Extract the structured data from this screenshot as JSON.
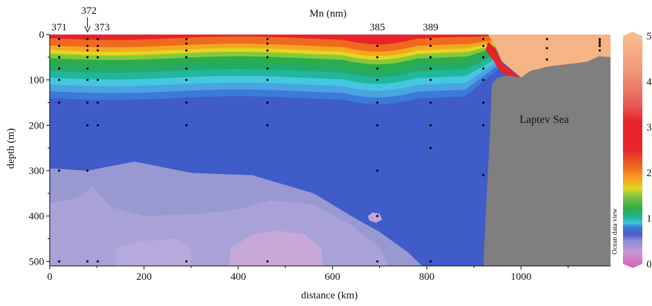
{
  "chart_data": {
    "type": "heatmap",
    "title": "Mn (nm)",
    "xlabel": "distance (km)",
    "ylabel": "depth (m)",
    "xlim": [
      0,
      1190
    ],
    "ylim": [
      510,
      0
    ],
    "xticks": [
      0,
      200,
      400,
      600,
      800,
      1000
    ],
    "yticks": [
      0,
      100,
      200,
      300,
      400,
      500
    ],
    "colorbar": {
      "ticks": [
        0,
        1,
        2,
        3,
        4,
        5
      ],
      "range": [
        0,
        5
      ],
      "label": "Ocean data view"
    },
    "stations": [
      {
        "label": "371",
        "x": 20
      },
      {
        "label": "372",
        "x": 80,
        "arrow": true
      },
      {
        "label": "373",
        "x": 102
      },
      {
        "label": "385",
        "x": 695
      },
      {
        "label": "389",
        "x": 808
      }
    ],
    "sample_profiles": [
      {
        "x": 20,
        "depths": [
          10,
          25,
          50,
          75,
          100,
          150,
          300,
          500
        ]
      },
      {
        "x": 80,
        "depths": [
          10,
          25,
          35,
          50,
          75,
          100,
          150,
          200,
          300,
          500
        ]
      },
      {
        "x": 102,
        "depths": [
          10,
          25,
          35,
          50,
          100,
          150,
          200,
          500
        ]
      },
      {
        "x": 290,
        "depths": [
          10,
          20,
          35,
          50,
          75,
          100,
          150,
          200,
          500
        ]
      },
      {
        "x": 462,
        "depths": [
          10,
          20,
          35,
          50,
          75,
          100,
          150,
          200,
          500
        ]
      },
      {
        "x": 695,
        "depths": [
          25,
          50,
          75,
          100,
          150,
          200,
          300,
          400,
          500
        ]
      },
      {
        "x": 808,
        "depths": [
          10,
          25,
          50,
          75,
          100,
          150,
          200,
          250,
          500
        ]
      },
      {
        "x": 920,
        "depths": [
          10,
          25,
          50,
          75,
          100,
          150,
          200,
          310,
          510
        ]
      },
      {
        "x": 1055,
        "depths": [
          10,
          30,
          55
        ]
      },
      {
        "x": 1167,
        "depths": [
          10,
          15,
          20,
          25,
          35
        ]
      }
    ],
    "field_layers": [
      {
        "value": 0.45,
        "color": "#9898d2",
        "contour": [
          [
            0,
            295
          ],
          [
            80,
            300
          ],
          [
            180,
            280
          ],
          [
            300,
            305
          ],
          [
            430,
            310
          ],
          [
            560,
            350
          ],
          [
            640,
            400
          ],
          [
            700,
            435
          ],
          [
            760,
            480
          ],
          [
            790,
            510
          ],
          [
            0,
            510
          ]
        ]
      },
      {
        "value": 0.35,
        "color": "#a8a2d8",
        "contour": [
          [
            0,
            372
          ],
          [
            60,
            360
          ],
          [
            90,
            335
          ],
          [
            130,
            380
          ],
          [
            200,
            400
          ],
          [
            320,
            395
          ],
          [
            400,
            385
          ],
          [
            470,
            365
          ],
          [
            560,
            375
          ],
          [
            640,
            420
          ],
          [
            700,
            470
          ],
          [
            720,
            510
          ],
          [
            0,
            510
          ]
        ]
      },
      {
        "value": 0.3,
        "color": "#b8a9dc",
        "contour": [
          [
            140,
            470
          ],
          [
            200,
            455
          ],
          [
            270,
            450
          ],
          [
            300,
            470
          ],
          [
            300,
            510
          ],
          [
            140,
            510
          ]
        ]
      },
      {
        "value": 0.25,
        "color": "#c8a8d6",
        "contour": [
          [
            380,
            510
          ],
          [
            385,
            470
          ],
          [
            430,
            440
          ],
          [
            480,
            432
          ],
          [
            540,
            440
          ],
          [
            575,
            470
          ],
          [
            580,
            510
          ]
        ]
      },
      {
        "value": 0.28,
        "color": "#c0a6d8",
        "contour": [
          [
            675,
            400
          ],
          [
            685,
            392
          ],
          [
            700,
            395
          ],
          [
            705,
            408
          ],
          [
            692,
            415
          ],
          [
            678,
            410
          ]
        ]
      }
    ],
    "surface_bands": [
      {
        "value": 3.0,
        "color": "#e8222a",
        "depth": 8
      },
      {
        "value": 2.4,
        "color": "#ef6a1c",
        "depth": 24
      },
      {
        "value": 2.0,
        "color": "#f6a722",
        "depth": 34
      },
      {
        "value": 1.7,
        "color": "#e3d71e",
        "depth": 42
      },
      {
        "value": 1.4,
        "color": "#86c83c",
        "depth": 52
      },
      {
        "value": 1.1,
        "color": "#2cac4b",
        "depth": 65
      },
      {
        "value": 0.95,
        "color": "#25aa66",
        "depth": 80
      },
      {
        "value": 0.85,
        "color": "#1fb79d",
        "depth": 95
      },
      {
        "value": 0.75,
        "color": "#45c7de",
        "depth": 110
      },
      {
        "value": 0.65,
        "color": "#4aa3e3",
        "depth": 125
      },
      {
        "value": 0.6,
        "color": "#3c7ad8",
        "depth": 140
      }
    ],
    "deep_value": {
      "value": 0.55,
      "color": "#3f5cc8"
    },
    "shelf_colors": {
      "upper": "#f6b385",
      "lower": "#e8222a"
    },
    "land": {
      "label": "Laptev Sea",
      "color": "#7f7f7f",
      "outline": [
        [
          1190,
          50
        ],
        [
          1165,
          48
        ],
        [
          1140,
          60
        ],
        [
          1100,
          65
        ],
        [
          1060,
          70
        ],
        [
          1020,
          80
        ],
        [
          1000,
          95
        ],
        [
          970,
          90
        ],
        [
          950,
          95
        ],
        [
          938,
          110
        ],
        [
          935,
          200
        ],
        [
          930,
          300
        ],
        [
          925,
          400
        ],
        [
          920,
          510
        ],
        [
          1190,
          510
        ]
      ]
    }
  }
}
